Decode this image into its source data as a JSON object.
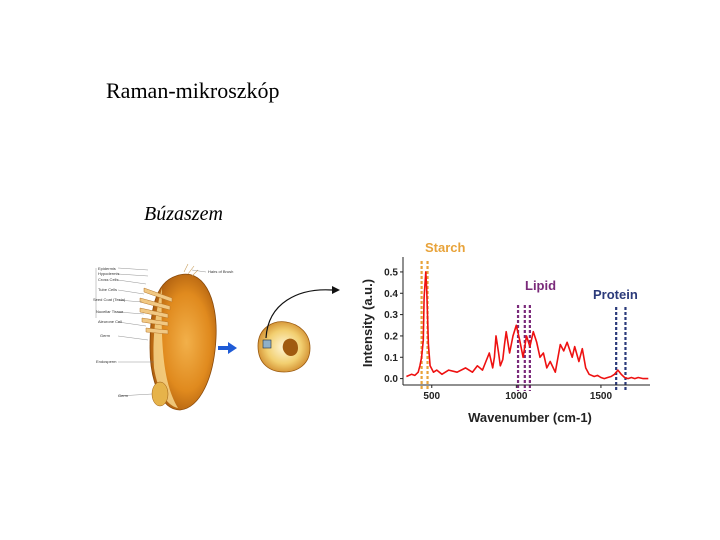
{
  "slide": {
    "title": "Raman-mikroszkóp",
    "subtitle": "Búzaszem"
  },
  "diagram": {
    "labels_left": [
      "Epidermis",
      "Hypodermis",
      "Cross Cells",
      "Tube Cells",
      "Seed Coat (Testa)",
      "Nucellar Tissue",
      "Aleurone Cell",
      "Germ",
      "Endosperm",
      "Germ"
    ],
    "labels_right": [
      "Hairs of Brush"
    ]
  },
  "chart_data": {
    "type": "line",
    "title": "",
    "xlabel": "Wavenumber (cm-1)",
    "ylabel": "Intensity (a.u.)",
    "xlim": [
      330,
      1790
    ],
    "ylim": [
      -0.03,
      0.57
    ],
    "x_ticks": [
      500,
      1000,
      1500
    ],
    "y_ticks": [
      0.0,
      0.1,
      0.2,
      0.3,
      0.4,
      0.5
    ],
    "series": [
      {
        "name": "",
        "color": "#ee1111",
        "x": [
          350,
          380,
          400,
          420,
          430,
          440,
          450,
          455,
          465,
          470,
          475,
          480,
          490,
          510,
          530,
          560,
          600,
          650,
          700,
          740,
          770,
          800,
          820,
          840,
          860,
          870,
          880,
          895,
          905,
          920,
          930,
          940,
          960,
          980,
          1000,
          1020,
          1040,
          1060,
          1080,
          1100,
          1120,
          1140,
          1160,
          1180,
          1200,
          1230,
          1260,
          1280,
          1300,
          1330,
          1345,
          1370,
          1390,
          1410,
          1430,
          1460,
          1480,
          1500,
          1520,
          1540,
          1560,
          1580,
          1600,
          1620,
          1640,
          1660,
          1680,
          1700,
          1720,
          1750,
          1780
        ],
        "y": [
          0.01,
          0.02,
          0.015,
          0.03,
          0.06,
          0.1,
          0.18,
          0.38,
          0.5,
          0.42,
          0.3,
          0.16,
          0.06,
          0.03,
          0.04,
          0.02,
          0.04,
          0.03,
          0.05,
          0.03,
          0.06,
          0.04,
          0.08,
          0.12,
          0.05,
          0.1,
          0.2,
          0.12,
          0.06,
          0.09,
          0.16,
          0.22,
          0.12,
          0.2,
          0.25,
          0.18,
          0.1,
          0.2,
          0.15,
          0.22,
          0.17,
          0.1,
          0.12,
          0.05,
          0.08,
          0.03,
          0.16,
          0.13,
          0.17,
          0.1,
          0.15,
          0.08,
          0.14,
          0.05,
          0.02,
          0.01,
          0.015,
          0.005,
          0.0,
          0.005,
          0.01,
          0.02,
          0.04,
          0.02,
          0.005,
          0.0,
          0.005,
          0.0,
          0.005,
          0.0,
          0.0
        ]
      }
    ],
    "bands": [
      {
        "label": "Starch",
        "color": "#e8a33a",
        "lines": [
          440,
          475
        ]
      },
      {
        "label": "Lipid",
        "color": "#7a2a7a",
        "lines": [
          1010,
          1050,
          1080
        ]
      },
      {
        "label": "Protein",
        "color": "#2b3a7a",
        "lines": [
          1590,
          1645
        ]
      }
    ]
  }
}
